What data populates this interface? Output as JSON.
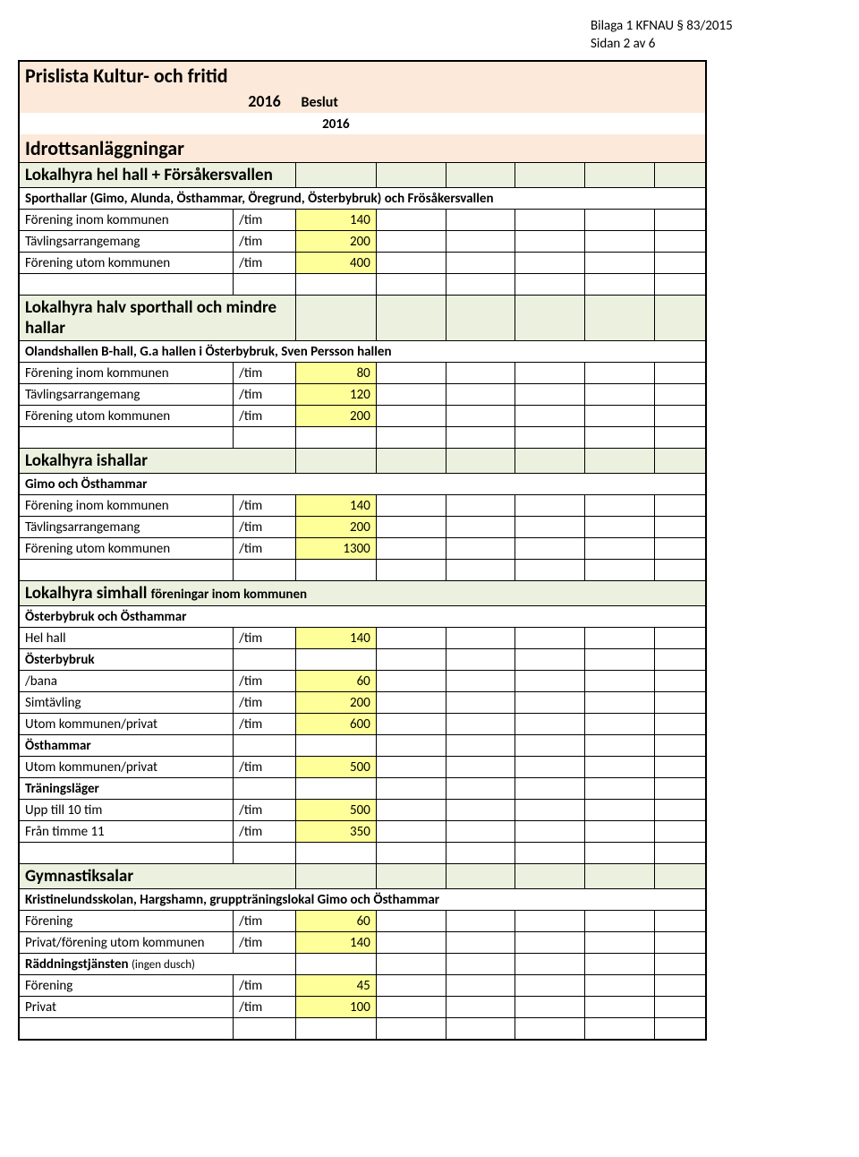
{
  "header": {
    "line1": "Bilaga 1 KFNAU § 83/2015",
    "line2": "Sidan 2 av 6"
  },
  "title": {
    "main": "Prislista Kultur- och fritid",
    "year": "2016",
    "beslut": "Beslut",
    "year2": "2016",
    "sub": "Idrottsanläggningar"
  },
  "sections": [
    {
      "head": "Lokalhyra hel hall + Försåkersvallen",
      "subhead": "Sporthallar (Gimo, Alunda, Östhammar, Öregrund, Österbybruk) och Frösåkersvallen",
      "rows": [
        {
          "label": "Förening inom kommunen",
          "unit": "/tim",
          "val": "140"
        },
        {
          "label": "Tävlingsarrangemang",
          "unit": "/tim",
          "val": "200"
        },
        {
          "label": "Förening utom kommunen",
          "unit": "/tim",
          "val": "400"
        }
      ]
    },
    {
      "head": "Lokalhyra halv sporthall och mindre hallar",
      "subhead": "Olandshallen B-hall, G.a hallen i Österbybruk, Sven Persson hallen",
      "rows": [
        {
          "label": "Förening inom kommunen",
          "unit": "/tim",
          "val": "80"
        },
        {
          "label": "Tävlingsarrangemang",
          "unit": "/tim",
          "val": "120"
        },
        {
          "label": "Förening utom kommunen",
          "unit": "/tim",
          "val": "200"
        }
      ]
    },
    {
      "head": "Lokalhyra ishallar",
      "subhead": "Gimo och Östhammar",
      "rows": [
        {
          "label": "Förening inom kommunen",
          "unit": "/tim",
          "val": "140"
        },
        {
          "label": "Tävlingsarrangemang",
          "unit": "/tim",
          "val": "200"
        },
        {
          "label": "Förening utom kommunen",
          "unit": "/tim",
          "val": "1300"
        }
      ]
    },
    {
      "head": "Lokalhyra simhall",
      "head_suffix": "föreningar inom kommunen",
      "subhead": "Österbybruk och Östhammar",
      "rows": [
        {
          "label": "Hel hall",
          "unit": "/tim",
          "val": "140"
        },
        {
          "label": "Österbybruk",
          "bold": true
        },
        {
          "label": "/bana",
          "unit": "/tim",
          "val": "60"
        },
        {
          "label": "Simtävling",
          "unit": "/tim",
          "val": "200"
        },
        {
          "label": "Utom kommunen/privat",
          "unit": "/tim",
          "val": "600"
        },
        {
          "label": "Östhammar",
          "bold": true
        },
        {
          "label": "Utom kommunen/privat",
          "unit": "/tim",
          "val": "500"
        },
        {
          "label": "Träningsläger",
          "bold": true
        },
        {
          "label": "Upp till 10 tim",
          "unit": "/tim",
          "val": "500"
        },
        {
          "label": "Från timme 11",
          "unit": "/tim",
          "val": "350"
        }
      ]
    },
    {
      "head": "Gymnastiksalar",
      "subhead": "Kristinelundsskolan, Hargshamn, gruppträningslokal Gimo och Östhammar",
      "rows": [
        {
          "label": "Förening",
          "unit": "/tim",
          "val": "60"
        },
        {
          "label": "Privat/förening utom kommunen",
          "unit": "/tim",
          "val": "140"
        },
        {
          "label": "Räddningstjänsten",
          "note": "(ingen dusch)",
          "bold": true
        },
        {
          "label": "Förening",
          "unit": "/tim",
          "val": "45"
        },
        {
          "label": "Privat",
          "unit": "/tim",
          "val": "100"
        }
      ]
    }
  ]
}
